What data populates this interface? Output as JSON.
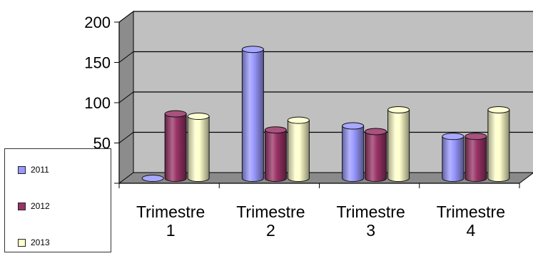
{
  "chart_data": {
    "type": "bar",
    "style": "3d-cylinder",
    "categories": [
      [
        "Trimestre",
        "1"
      ],
      [
        "Trimestre",
        "2"
      ],
      [
        "Trimestre",
        "3"
      ],
      [
        "Trimestre",
        "4"
      ]
    ],
    "series": [
      {
        "name": "2011",
        "color": "#9999ff",
        "values": [
          0,
          160,
          65,
          52
        ]
      },
      {
        "name": "2012",
        "color": "#993366",
        "values": [
          80,
          60,
          58,
          52
        ]
      },
      {
        "name": "2013",
        "color": "#ffffcc",
        "values": [
          77,
          72,
          85,
          85
        ]
      }
    ],
    "yticks": [
      0,
      50,
      100,
      150,
      200
    ],
    "ylim": [
      0,
      200
    ],
    "grid": true,
    "legend": "bottom-left",
    "wall_color": "#c0c0c0"
  }
}
